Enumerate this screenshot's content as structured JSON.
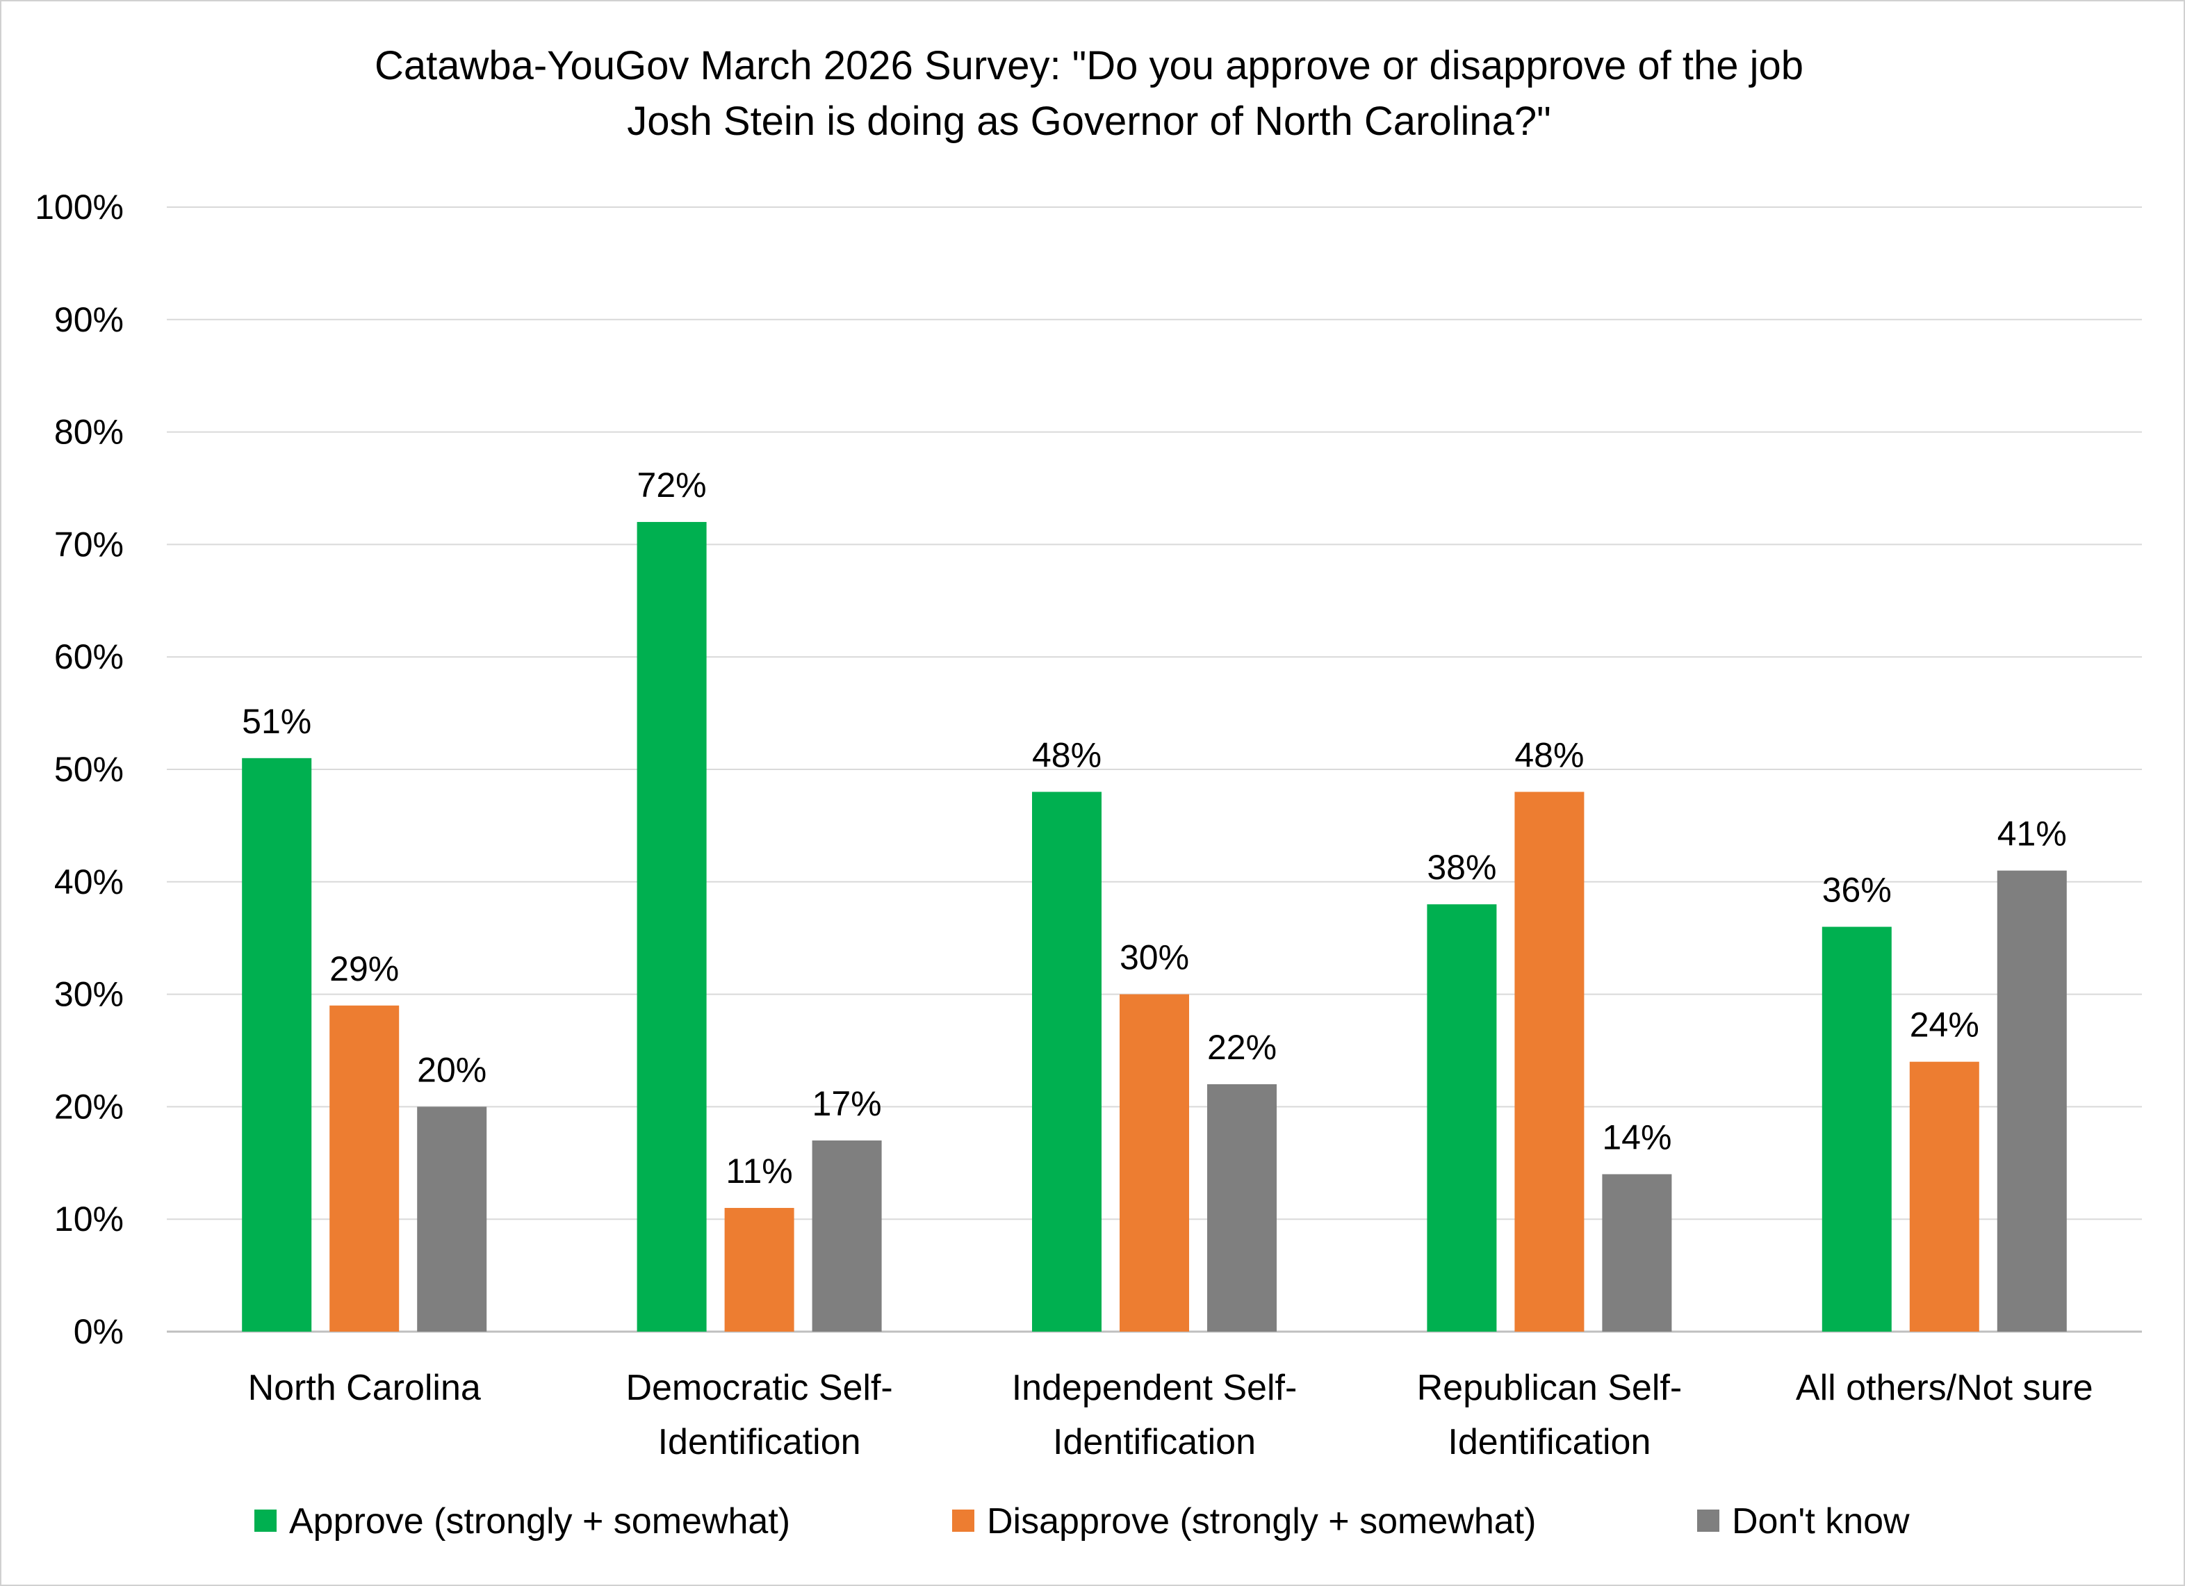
{
  "chart_data": {
    "type": "bar",
    "title_lines": [
      "Catawba-YouGov March 2026 Survey: \"Do you approve or disapprove of the job",
      "Josh Stein is doing as Governor of North Carolina?\""
    ],
    "categories": [
      [
        "North Carolina"
      ],
      [
        "Democratic Self-",
        "Identification"
      ],
      [
        "Independent Self-",
        "Identification"
      ],
      [
        "Republican Self-",
        "Identification"
      ],
      [
        "All others/Not sure"
      ]
    ],
    "series": [
      {
        "name": "Approve (strongly + somewhat)",
        "color": "#00b050",
        "values": [
          51,
          72,
          48,
          38,
          36
        ],
        "value_labels": [
          "51%",
          "72%",
          "48%",
          "38%",
          "36%"
        ]
      },
      {
        "name": "Disapprove (strongly + somewhat)",
        "color": "#ed7d31",
        "values": [
          29,
          11,
          30,
          48,
          24
        ],
        "value_labels": [
          "29%",
          "11%",
          "30%",
          "48%",
          "24%"
        ]
      },
      {
        "name": "Don't know",
        "color": "#7f7f7f",
        "values": [
          20,
          17,
          22,
          14,
          41
        ],
        "value_labels": [
          "20%",
          "17%",
          "22%",
          "14%",
          "41%"
        ]
      }
    ],
    "y_ticks": [
      "0%",
      "10%",
      "20%",
      "30%",
      "40%",
      "50%",
      "60%",
      "70%",
      "80%",
      "90%",
      "100%"
    ],
    "ylim": [
      0,
      100
    ],
    "grid": true,
    "legend_position": "bottom"
  }
}
